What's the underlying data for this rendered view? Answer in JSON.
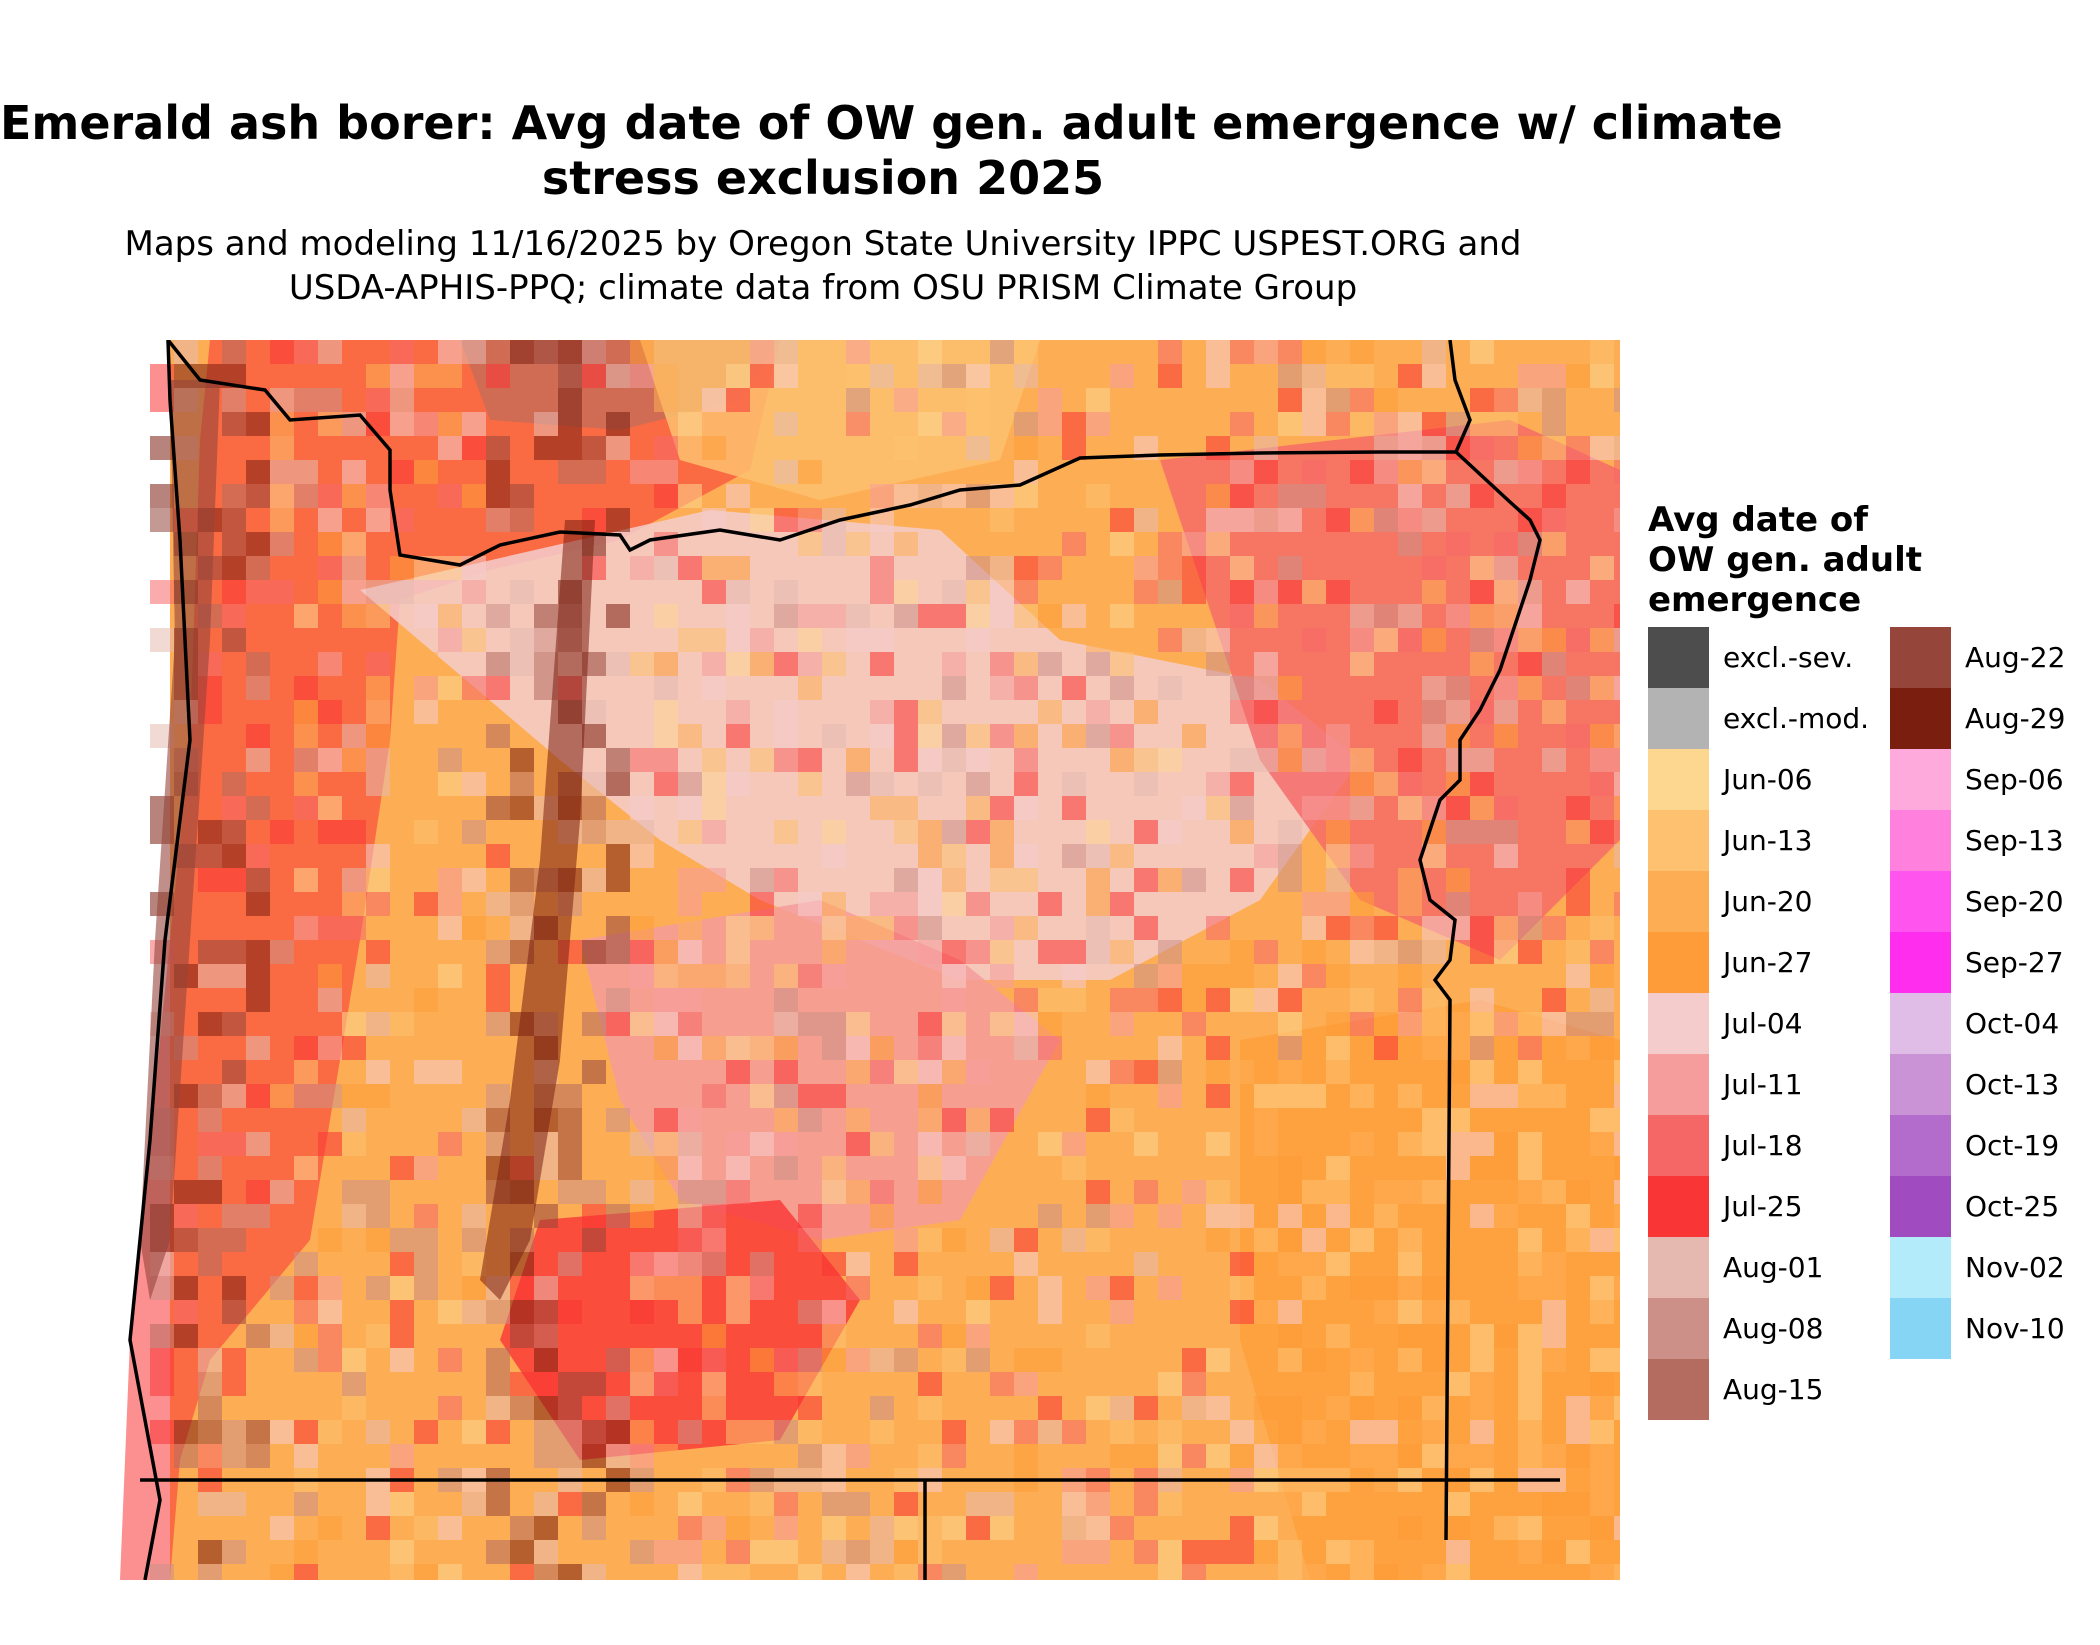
{
  "title_line1": "Emerald ash borer: Avg date of OW gen. adult emergence w/ climate",
  "title_line2": "stress exclusion 2025",
  "subtitle_line1": "Maps and modeling 11/16/2025 by Oregon State University IPPC USPEST.ORG and",
  "subtitle_line2": "USDA-APHIS-PPQ; climate data from OSU PRISM Climate Group",
  "legend": {
    "title_line1": "Avg date of",
    "title_line2": "OW gen. adult",
    "title_line3": "emergence",
    "col1": [
      {
        "label": "excl.-sev.",
        "color": "#4d4d4d"
      },
      {
        "label": "excl.-mod.",
        "color": "#b3b3b3"
      },
      {
        "label": "Jun-06",
        "color": "#fdd68f"
      },
      {
        "label": "Jun-13",
        "color": "#fdc170"
      },
      {
        "label": "Jun-20",
        "color": "#fdae55"
      },
      {
        "label": "Jun-27",
        "color": "#fd9c38"
      },
      {
        "label": "Jul-04",
        "color": "#f5cccc"
      },
      {
        "label": "Jul-11",
        "color": "#f59c9c"
      },
      {
        "label": "Jul-18",
        "color": "#f56767"
      },
      {
        "label": "Jul-25",
        "color": "#fa3535"
      },
      {
        "label": "Aug-01",
        "color": "#e6b9b0"
      },
      {
        "label": "Aug-08",
        "color": "#cc9088"
      },
      {
        "label": "Aug-15",
        "color": "#b56c60"
      }
    ],
    "col2": [
      {
        "label": "Aug-22",
        "color": "#96453a"
      },
      {
        "label": "Aug-29",
        "color": "#7a1f10"
      },
      {
        "label": "Sep-06",
        "color": "#ffaadd"
      },
      {
        "label": "Sep-13",
        "color": "#ff80dd"
      },
      {
        "label": "Sep-20",
        "color": "#ff55ee"
      },
      {
        "label": "Sep-27",
        "color": "#ff2eee"
      },
      {
        "label": "Oct-04",
        "color": "#e0bde6"
      },
      {
        "label": "Oct-13",
        "color": "#c993d6"
      },
      {
        "label": "Oct-19",
        "color": "#b36bcc"
      },
      {
        "label": "Oct-25",
        "color": "#a04bc0"
      },
      {
        "label": "Nov-02",
        "color": "#b3ebfa"
      },
      {
        "label": "Nov-10",
        "color": "#87d5f5"
      }
    ]
  }
}
